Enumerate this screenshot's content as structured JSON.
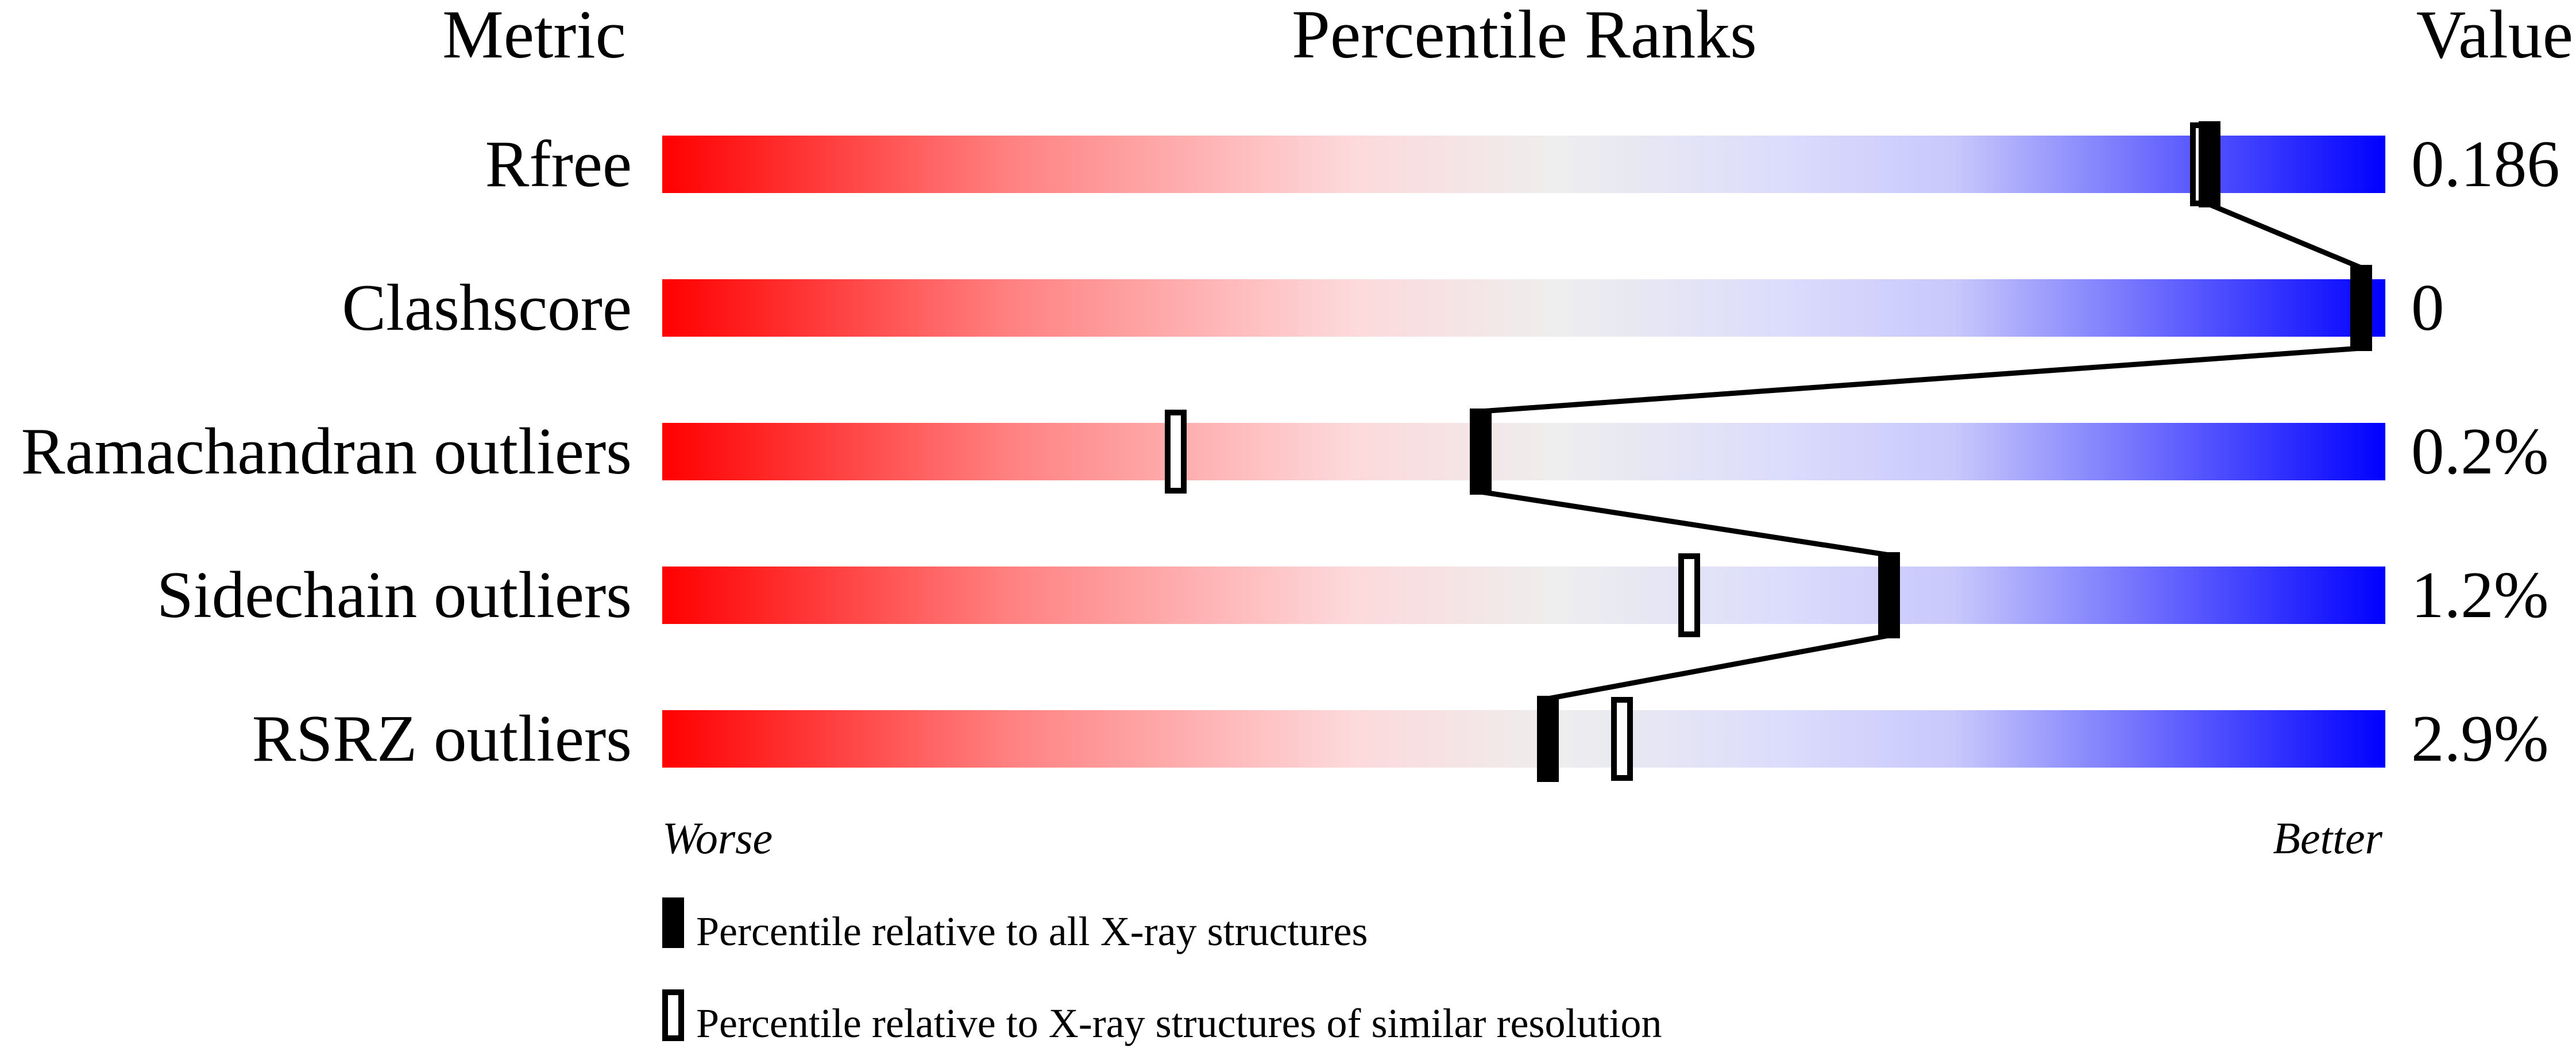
{
  "chart_data": {
    "type": "percentile-slider",
    "headers": {
      "metric": "Metric",
      "ranks": "Percentile Ranks",
      "value": "Value"
    },
    "xlim": [
      0,
      100
    ],
    "gradient_colors": [
      "#ff0000",
      "#ff8080",
      "#fdd9db",
      "#eeeeee",
      "#dcdcfc",
      "#c8c8fc",
      "#0000ff"
    ],
    "metrics": [
      {
        "label": "Rfree",
        "value": "0.186",
        "percentile_all": 89.8,
        "percentile_similar": 89.3
      },
      {
        "label": "Clashscore",
        "value": "0",
        "percentile_all": 98.6,
        "percentile_similar": null
      },
      {
        "label": "Ramachandran outliers",
        "value": "0.2%",
        "percentile_all": 47.5,
        "percentile_similar": 29.8
      },
      {
        "label": "Sidechain outliers",
        "value": "1.2%",
        "percentile_all": 71.2,
        "percentile_similar": 59.6
      },
      {
        "label": "RSRZ outliers",
        "value": "2.9%",
        "percentile_all": 51.4,
        "percentile_similar": 55.7
      }
    ],
    "axis_labels": {
      "left": "Worse",
      "right": "Better"
    },
    "legend": [
      {
        "marker": "filled",
        "label": "Percentile relative to all X-ray structures"
      },
      {
        "marker": "open",
        "label": "Percentile relative to X-ray structures of similar resolution"
      }
    ]
  }
}
